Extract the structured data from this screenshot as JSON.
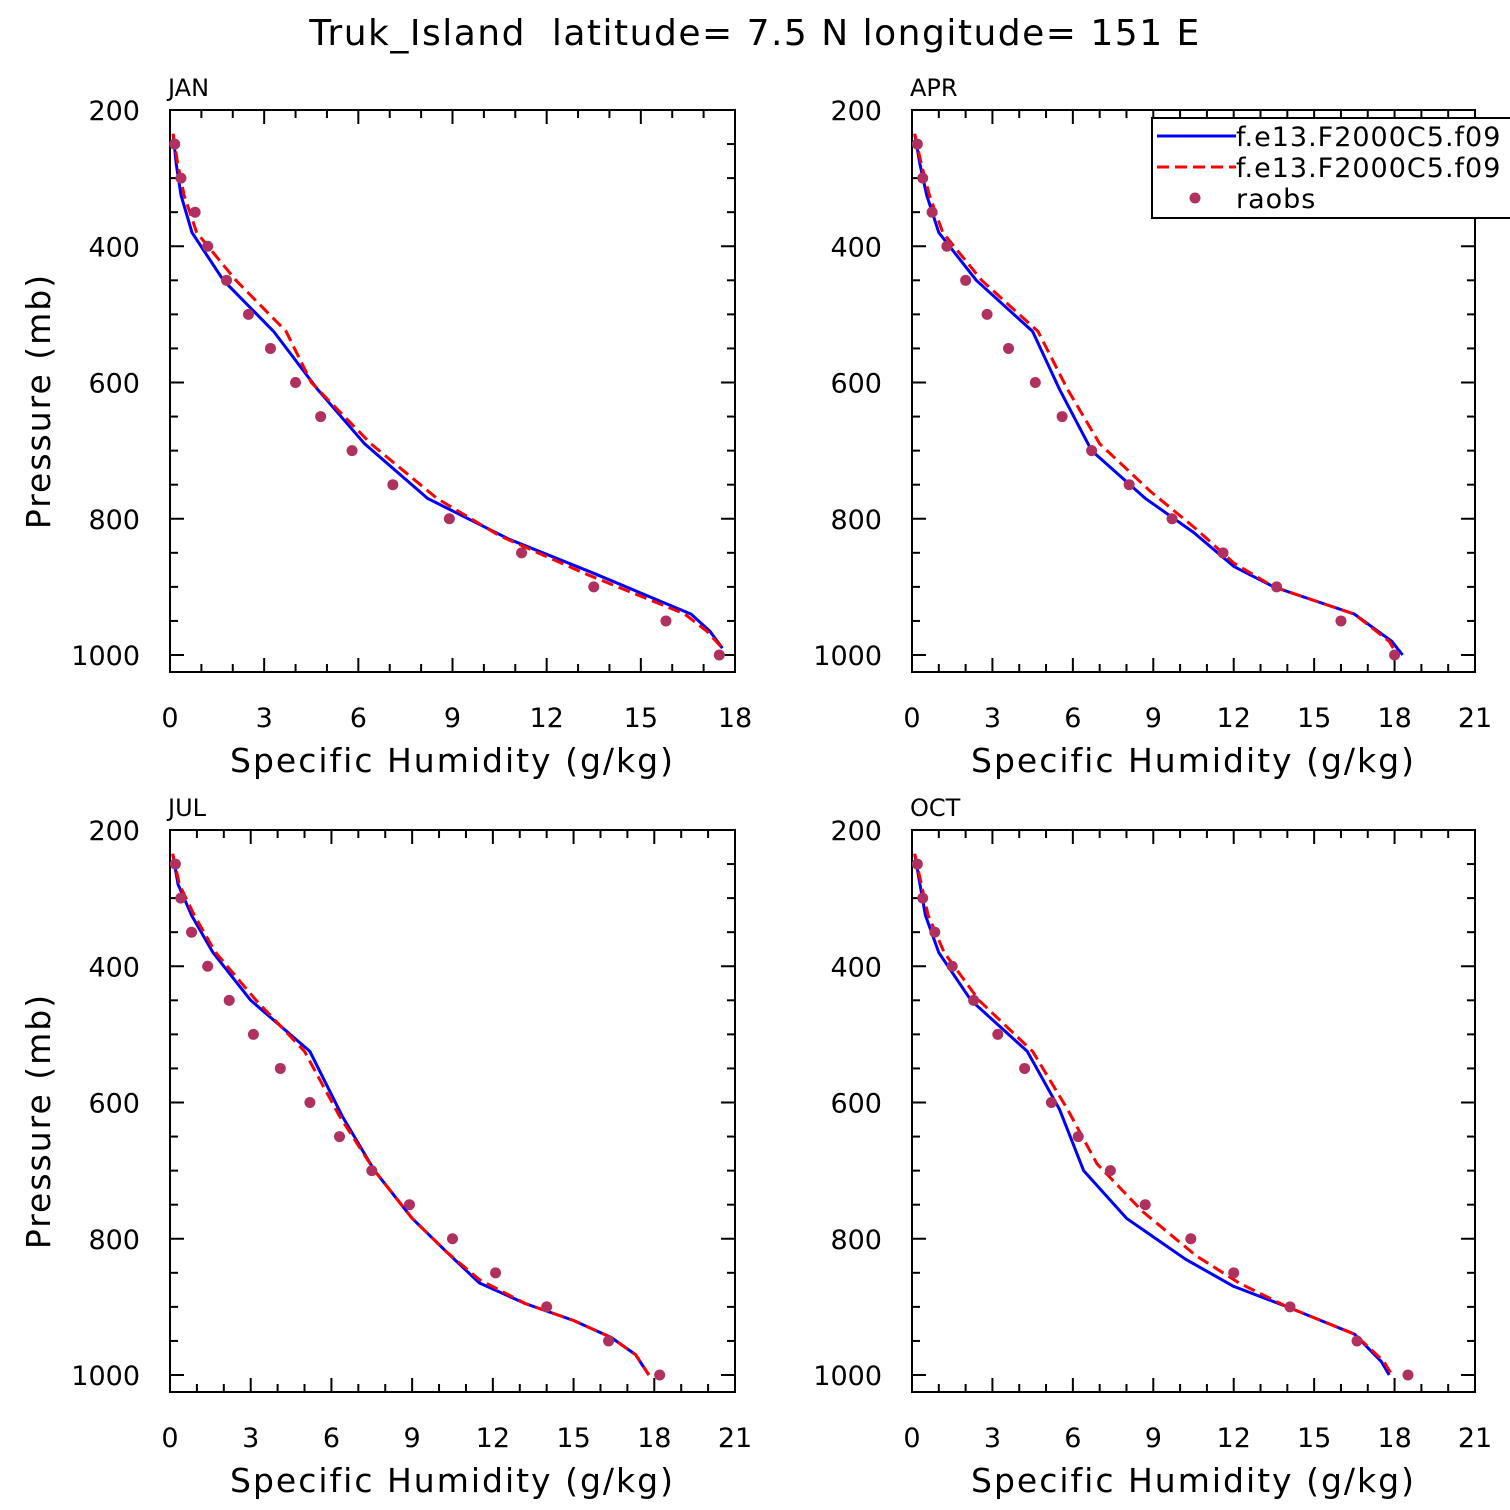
{
  "title": "Truk_Island  latitude= 7.5 N longitude= 151 E",
  "legend": {
    "entries": [
      {
        "label": "f.e13.F2000C5.f09",
        "style": "solid",
        "color": "#0000ff"
      },
      {
        "label": "f.e13.F2000C5.f09",
        "style": "dashed",
        "color": "#ff0000"
      },
      {
        "label": "raobs",
        "style": "dot",
        "color": "#b03060"
      }
    ]
  },
  "chart_data": [
    {
      "type": "line",
      "panel": "JAN",
      "xlabel": "Specific Humidity (g/kg)",
      "ylabel": "Pressure (mb)",
      "xlim": [
        0,
        18
      ],
      "ylim": [
        200,
        1025
      ],
      "xticks": [
        "0",
        "3",
        "6",
        "9",
        "12",
        "15",
        "18"
      ],
      "yticks": [
        "200",
        "400",
        "600",
        "800",
        "1000"
      ],
      "series": [
        {
          "name": "f.e13.F2000C5.f09",
          "color": "#0000ff",
          "dash": "solid",
          "x": [
            0.1,
            0.2,
            0.35,
            0.7,
            1.7,
            3.3,
            4.7,
            6.2,
            8.2,
            10.8,
            13.5,
            16.6,
            17.2,
            17.6
          ],
          "y": [
            235,
            280,
            325,
            380,
            450,
            525,
            610,
            690,
            770,
            830,
            880,
            940,
            965,
            990
          ]
        },
        {
          "name": "f.e13.F2000C5.f09",
          "color": "#ff0000",
          "dash": "dashed",
          "x": [
            0.1,
            0.25,
            0.45,
            0.85,
            2.1,
            3.7,
            4.5,
            6.4,
            8.5,
            10.5,
            13.2,
            16.4,
            17.1,
            17.6
          ],
          "y": [
            235,
            280,
            325,
            380,
            450,
            525,
            600,
            690,
            770,
            825,
            880,
            940,
            965,
            990
          ]
        },
        {
          "name": "raobs",
          "color": "#b03060",
          "dash": "dot",
          "x": [
            0.15,
            0.35,
            0.8,
            1.2,
            1.8,
            2.5,
            3.2,
            4.0,
            4.8,
            5.8,
            7.1,
            8.9,
            11.2,
            13.5,
            15.8,
            17.5
          ],
          "y": [
            250,
            300,
            350,
            400,
            450,
            500,
            550,
            600,
            650,
            700,
            750,
            800,
            850,
            900,
            950,
            1000
          ]
        }
      ]
    },
    {
      "type": "line",
      "panel": "APR",
      "xlabel": "Specific Humidity (g/kg)",
      "ylabel": "",
      "xlim": [
        0,
        21
      ],
      "ylim": [
        200,
        1025
      ],
      "xticks": [
        "0",
        "3",
        "6",
        "9",
        "12",
        "15",
        "18",
        "21"
      ],
      "yticks": [
        "200",
        "400",
        "600",
        "800",
        "1000"
      ],
      "series": [
        {
          "name": "f.e13.F2000C5.f09",
          "color": "#0000ff",
          "dash": "solid",
          "x": [
            0.1,
            0.3,
            0.55,
            1.0,
            2.4,
            4.5,
            5.5,
            6.7,
            8.7,
            10.5,
            12.0,
            13.5,
            15.0,
            16.5,
            17.9,
            18.3
          ],
          "y": [
            235,
            280,
            325,
            380,
            450,
            525,
            610,
            700,
            770,
            820,
            870,
            900,
            920,
            940,
            980,
            1000
          ]
        },
        {
          "name": "f.e13.F2000C5.f09",
          "color": "#ff0000",
          "dash": "dashed",
          "x": [
            0.1,
            0.35,
            0.65,
            1.15,
            2.6,
            4.7,
            5.8,
            7.0,
            8.9,
            10.6,
            12.0,
            13.5,
            15.0,
            16.5,
            17.8,
            18.1
          ],
          "y": [
            235,
            280,
            325,
            380,
            450,
            525,
            610,
            690,
            760,
            815,
            865,
            900,
            920,
            940,
            980,
            1000
          ]
        },
        {
          "name": "raobs",
          "color": "#b03060",
          "dash": "dot",
          "x": [
            0.2,
            0.4,
            0.75,
            1.3,
            2.0,
            2.8,
            3.6,
            4.6,
            5.6,
            6.7,
            8.1,
            9.7,
            11.6,
            13.6,
            16.0,
            18.0
          ],
          "y": [
            250,
            300,
            350,
            400,
            450,
            500,
            550,
            600,
            650,
            700,
            750,
            800,
            850,
            900,
            950,
            1000
          ]
        }
      ]
    },
    {
      "type": "line",
      "panel": "JUL",
      "xlabel": "Specific Humidity (g/kg)",
      "ylabel": "Pressure (mb)",
      "xlim": [
        0,
        21
      ],
      "ylim": [
        200,
        1025
      ],
      "xticks": [
        "0",
        "3",
        "6",
        "9",
        "12",
        "15",
        "18",
        "21"
      ],
      "yticks": [
        "200",
        "400",
        "600",
        "800",
        "1000"
      ],
      "series": [
        {
          "name": "f.e13.F2000C5.f09",
          "color": "#0000ff",
          "dash": "solid",
          "x": [
            0.1,
            0.3,
            0.8,
            1.6,
            3.0,
            5.2,
            6.4,
            7.6,
            9.0,
            10.3,
            11.5,
            13.2,
            15.0,
            16.4,
            17.3,
            17.8
          ],
          "y": [
            235,
            280,
            325,
            380,
            450,
            525,
            620,
            700,
            770,
            820,
            865,
            895,
            920,
            945,
            970,
            1000
          ]
        },
        {
          "name": "f.e13.F2000C5.f09",
          "color": "#ff0000",
          "dash": "dashed",
          "x": [
            0.1,
            0.35,
            0.9,
            1.7,
            3.2,
            5.0,
            6.3,
            7.6,
            9.0,
            10.3,
            11.5,
            13.2,
            15.0,
            16.4,
            17.3,
            17.8
          ],
          "y": [
            235,
            280,
            325,
            380,
            450,
            525,
            620,
            700,
            770,
            820,
            860,
            895,
            920,
            945,
            970,
            1000
          ]
        },
        {
          "name": "raobs",
          "color": "#b03060",
          "dash": "dot",
          "x": [
            0.2,
            0.4,
            0.8,
            1.4,
            2.2,
            3.1,
            4.1,
            5.2,
            6.3,
            7.5,
            8.9,
            10.5,
            12.1,
            14.0,
            16.3,
            18.2
          ],
          "y": [
            250,
            300,
            350,
            400,
            450,
            500,
            550,
            600,
            650,
            700,
            750,
            800,
            850,
            900,
            950,
            1000
          ]
        }
      ]
    },
    {
      "type": "line",
      "panel": "OCT",
      "xlabel": "Specific Humidity (g/kg)",
      "ylabel": "",
      "xlim": [
        0,
        21
      ],
      "ylim": [
        200,
        1025
      ],
      "xticks": [
        "0",
        "3",
        "6",
        "9",
        "12",
        "15",
        "18",
        "21"
      ],
      "yticks": [
        "200",
        "400",
        "600",
        "800",
        "1000"
      ],
      "series": [
        {
          "name": "f.e13.F2000C5.f09",
          "color": "#0000ff",
          "dash": "solid",
          "x": [
            0.1,
            0.3,
            0.5,
            1.0,
            2.2,
            4.3,
            5.5,
            6.4,
            8.0,
            10.2,
            12.0,
            14.0,
            16.5,
            17.5,
            17.8
          ],
          "y": [
            235,
            280,
            325,
            380,
            450,
            525,
            610,
            700,
            770,
            830,
            870,
            900,
            940,
            980,
            1000
          ]
        },
        {
          "name": "f.e13.F2000C5.f09",
          "color": "#ff0000",
          "dash": "dashed",
          "x": [
            0.1,
            0.35,
            0.6,
            1.2,
            2.5,
            4.5,
            5.8,
            6.9,
            8.6,
            10.6,
            12.2,
            14.0,
            16.5,
            17.6,
            17.9
          ],
          "y": [
            235,
            280,
            325,
            380,
            450,
            525,
            610,
            690,
            760,
            825,
            865,
            900,
            940,
            980,
            1000
          ]
        },
        {
          "name": "raobs",
          "color": "#b03060",
          "dash": "dot",
          "x": [
            0.2,
            0.4,
            0.85,
            1.5,
            2.3,
            3.2,
            4.2,
            5.2,
            6.2,
            7.4,
            8.7,
            10.4,
            12.0,
            14.1,
            16.6,
            18.5
          ],
          "y": [
            250,
            300,
            350,
            400,
            450,
            500,
            550,
            600,
            650,
            700,
            750,
            800,
            850,
            900,
            950,
            1000
          ]
        }
      ]
    }
  ]
}
